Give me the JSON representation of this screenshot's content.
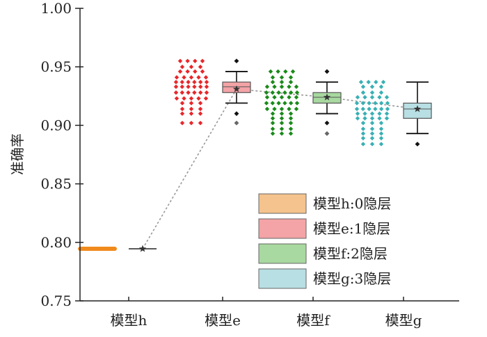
{
  "chart_data": {
    "type": "box",
    "ylabel": "准确率",
    "ylim": [
      0.75,
      1.0
    ],
    "yticks": [
      "0.75",
      "0.80",
      "0.85",
      "0.90",
      "0.95",
      "1.00"
    ],
    "ytick_values": [
      0.75,
      0.8,
      0.85,
      0.9,
      0.95,
      1.0
    ],
    "categories": [
      "模型h",
      "模型e",
      "模型f",
      "模型g"
    ],
    "legend_position": "bottom-right",
    "series": [
      {
        "name": "模型h:0隐层",
        "category": "模型h",
        "color": "#f08a1c",
        "box_fill": "#f5c38e",
        "box": {
          "q1": 0.7945,
          "median": 0.7945,
          "q3": 0.7945,
          "whisker_low": 0.7945,
          "whisker_high": 0.7945,
          "mean": 0.7945
        },
        "outliers": [],
        "points": [
          0.7945,
          0.7945,
          0.7945,
          0.7945,
          0.7945
        ]
      },
      {
        "name": "模型e:1隐层",
        "category": "模型e",
        "color": "#e8262a",
        "box_fill": "#f4a3a6",
        "box": {
          "q1": 0.928,
          "median": 0.933,
          "q3": 0.937,
          "whisker_low": 0.919,
          "whisker_high": 0.946,
          "mean": 0.931
        },
        "outliers": [
          0.955,
          0.91,
          0.902
        ],
        "points": [
          0.955,
          0.955,
          0.95,
          0.946,
          0.946,
          0.941,
          0.937,
          0.937,
          0.933,
          0.933,
          0.928,
          0.928,
          0.923,
          0.919,
          0.914,
          0.91,
          0.902
        ]
      },
      {
        "name": "模型f:2隐层",
        "category": "模型f",
        "color": "#1a8a1a",
        "box_fill": "#a8d9a0",
        "box": {
          "q1": 0.919,
          "median": 0.924,
          "q3": 0.928,
          "whisker_low": 0.91,
          "whisker_high": 0.937,
          "mean": 0.924
        },
        "outliers": [
          0.946,
          0.902,
          0.893
        ],
        "points": [
          0.946,
          0.946,
          0.941,
          0.937,
          0.933,
          0.928,
          0.928,
          0.924,
          0.919,
          0.919,
          0.914,
          0.91,
          0.906,
          0.902,
          0.897,
          0.893
        ]
      },
      {
        "name": "模型g:3隐层",
        "category": "模型g",
        "color": "#3ab0b4",
        "box_fill": "#b8dfe3",
        "box": {
          "q1": 0.906,
          "median": 0.914,
          "q3": 0.919,
          "whisker_low": 0.893,
          "whisker_high": 0.937,
          "mean": 0.914
        },
        "outliers": [
          0.884
        ],
        "points": [
          0.937,
          0.937,
          0.933,
          0.928,
          0.924,
          0.919,
          0.919,
          0.914,
          0.914,
          0.91,
          0.906,
          0.902,
          0.897,
          0.893,
          0.889,
          0.884
        ]
      }
    ],
    "mean_trend_line": true
  }
}
